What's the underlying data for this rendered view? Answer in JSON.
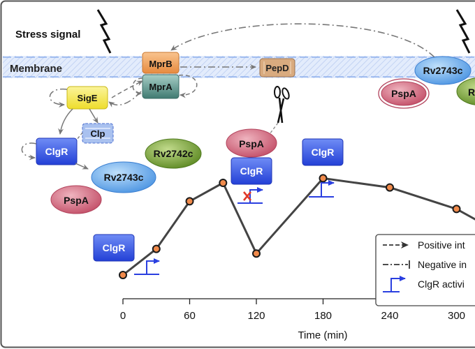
{
  "stress_signal": "Stress signal",
  "membrane_label": "Membrane",
  "proteins": {
    "mprb": "MprB",
    "mpra": "MprA",
    "pepd": "PepD",
    "sige": "SigE",
    "clp": "Clp",
    "clgr": "ClgR",
    "rv2743c": "Rv2743c",
    "rv2742c": "Rv2742c",
    "pspa": "PspA",
    "rv2742c_partial": "R"
  },
  "legend": {
    "positive": "Positive int",
    "negative": "Negative in",
    "clgr_activity": "ClgR activi"
  },
  "chart_data": {
    "type": "line",
    "xlabel": "Time (min)",
    "ylabel": "",
    "x_ticks": [
      0,
      60,
      120,
      180,
      240,
      300
    ],
    "x": [
      0,
      30,
      60,
      90,
      120,
      180,
      240,
      300,
      320
    ],
    "values": [
      0.0,
      0.17,
      0.48,
      0.6,
      0.14,
      0.63,
      0.57,
      0.43,
      0.35
    ],
    "ylim": [
      0,
      1
    ],
    "grid": false,
    "colors": {
      "line": "#444444",
      "marker_fill": "#f08a4b",
      "marker_edge": "#1a1a1a"
    }
  },
  "colors": {
    "clgr": "#3355e6",
    "rv2743c": "#5aa6ec",
    "rv2742c": "#6b9a2e",
    "pspa": "#c9566e",
    "mprb": "#f0a360",
    "mpra": "#4f8a82",
    "pepd": "#d9a87a",
    "sige": "#f3e64a",
    "clp": "#9fb7ec",
    "membrane": "#dde8fb"
  }
}
